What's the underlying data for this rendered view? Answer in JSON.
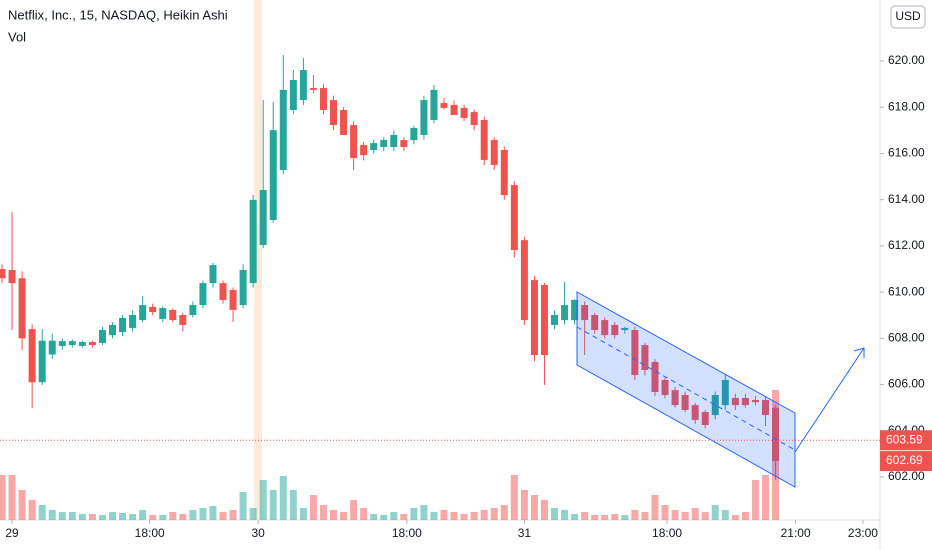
{
  "chart_data": {
    "type": "candlestick",
    "title": "Netflix, Inc., 15, NASDAQ, Heikin Ashi",
    "volume_label": "Vol",
    "currency": "USD",
    "up_color": "#26a69a",
    "down_color": "#ef5350",
    "x": [
      -1,
      0,
      1,
      2,
      3,
      4,
      5,
      6,
      7,
      8,
      9,
      10,
      11,
      12,
      13,
      14,
      15,
      16,
      17,
      18,
      19,
      20,
      21,
      22,
      23,
      24,
      25,
      26,
      27,
      28,
      29,
      30,
      31,
      32,
      33,
      34,
      35,
      36,
      37,
      38,
      39,
      40,
      41,
      42,
      43,
      44,
      45,
      46,
      47,
      48,
      49,
      50,
      51,
      52,
      53,
      54,
      55,
      56,
      57,
      58,
      59,
      60,
      61,
      62,
      63,
      64,
      65,
      66,
      67,
      68,
      69,
      70,
      71,
      72,
      73,
      74,
      75,
      76
    ],
    "open": [
      611.0,
      610.96,
      610.6,
      608.4,
      606.1,
      607.3,
      607.67,
      607.71,
      607.67,
      607.84,
      607.8,
      608.14,
      608.27,
      608.45,
      608.79,
      609.36,
      608.84,
      609.23,
      609.01,
      609.01,
      609.44,
      610.39,
      610.39,
      610.09,
      609.44,
      610.39,
      612.04,
      613.12,
      615.28,
      617.88,
      618.31,
      618.83,
      618.83,
      618.31,
      617.88,
      617.23,
      616.37,
      616.15,
      616.28,
      616.28,
      616.58,
      616.58,
      616.8,
      617.45,
      618.18,
      618.1,
      617.97,
      617.79,
      617.45,
      616.58,
      616.15,
      614.63,
      612.25,
      610.52,
      610.31,
      608.58,
      608.79,
      608.79,
      609.44,
      609.01,
      608.79,
      608.58,
      608.36,
      608.36,
      607.71,
      606.98,
      606.2,
      605.76,
      605.55,
      605.11,
      604.81,
      604.68,
      605.11,
      605.42,
      605.42,
      605.33,
      605.33,
      605.0
    ],
    "high": [
      611.2,
      613.47,
      610.9,
      608.6,
      608.4,
      608.2,
      608.0,
      607.95,
      607.9,
      607.9,
      608.5,
      608.7,
      609.0,
      609.2,
      609.83,
      609.5,
      609.4,
      609.3,
      609.1,
      609.6,
      610.5,
      611.26,
      610.5,
      610.2,
      611.2,
      614.2,
      618.31,
      618.23,
      620.26,
      619.61,
      620.13,
      619.4,
      619.0,
      618.5,
      618.0,
      617.4,
      616.5,
      616.6,
      616.7,
      617.0,
      616.7,
      617.2,
      618.5,
      618.96,
      618.4,
      618.3,
      618.1,
      617.9,
      617.6,
      616.7,
      616.3,
      614.8,
      612.4,
      610.7,
      610.4,
      609.2,
      610.44,
      609.7,
      609.6,
      609.1,
      608.9,
      608.7,
      608.5,
      608.5,
      607.8,
      607.1,
      606.3,
      605.9,
      605.7,
      605.2,
      604.9,
      605.7,
      606.41,
      605.6,
      605.6,
      605.5,
      605.5,
      605.1
    ],
    "low": [
      610.4,
      608.36,
      607.5,
      604.98,
      605.98,
      607.1,
      607.5,
      607.6,
      607.6,
      607.6,
      607.7,
      608.0,
      608.1,
      608.3,
      608.7,
      609.0,
      608.7,
      608.7,
      608.3,
      608.9,
      609.3,
      610.2,
      609.5,
      608.71,
      609.3,
      610.2,
      611.9,
      613.0,
      615.1,
      617.7,
      618.1,
      618.6,
      617.7,
      617.0,
      616.8,
      615.28,
      615.7,
      616.0,
      616.1,
      616.1,
      616.1,
      616.4,
      616.6,
      617.3,
      617.9,
      617.7,
      617.4,
      617.0,
      615.5,
      615.3,
      614.0,
      611.5,
      608.58,
      607.0,
      605.98,
      608.4,
      608.6,
      608.6,
      607.28,
      608.2,
      608.0,
      608.0,
      608.2,
      606.2,
      606.4,
      605.5,
      605.4,
      605.0,
      604.8,
      604.3,
      604.1,
      604.5,
      604.9,
      604.9,
      605.0,
      605.1,
      604.2,
      601.87
    ],
    "close": [
      610.6,
      610.39,
      608.0,
      606.1,
      607.9,
      607.9,
      607.88,
      607.88,
      607.84,
      607.71,
      608.36,
      608.58,
      608.88,
      609.01,
      609.44,
      609.14,
      609.31,
      608.79,
      608.58,
      609.44,
      610.39,
      611.17,
      609.66,
      609.23,
      610.96,
      613.99,
      614.42,
      617.01,
      618.75,
      619.18,
      619.61,
      618.75,
      617.88,
      617.23,
      616.8,
      615.8,
      615.93,
      616.45,
      616.58,
      616.8,
      616.28,
      617.1,
      618.31,
      618.75,
      617.97,
      617.66,
      617.53,
      617.23,
      615.72,
      615.5,
      614.2,
      611.82,
      608.79,
      607.28,
      607.28,
      609.01,
      609.44,
      609.66,
      608.79,
      608.36,
      608.14,
      608.14,
      608.45,
      606.41,
      606.63,
      605.68,
      605.55,
      605.11,
      604.9,
      604.47,
      604.25,
      605.55,
      606.2,
      605.11,
      605.11,
      605.24,
      604.68,
      602.69
    ],
    "volume": [
      45,
      45,
      30,
      20,
      15,
      10,
      8,
      8,
      6,
      6,
      5,
      8,
      7,
      6,
      10,
      5,
      5,
      8,
      6,
      10,
      12,
      14,
      8,
      10,
      28,
      12,
      40,
      30,
      44,
      30,
      12,
      25,
      15,
      10,
      8,
      20,
      12,
      6,
      5,
      8,
      6,
      12,
      15,
      8,
      10,
      8,
      6,
      8,
      10,
      12,
      15,
      45,
      30,
      25,
      20,
      12,
      10,
      6,
      8,
      5,
      5,
      6,
      5,
      10,
      8,
      25,
      15,
      10,
      8,
      12,
      8,
      15,
      10,
      5,
      8,
      40,
      45,
      130
    ],
    "vol_lim": [
      0,
      520
    ],
    "price_line": 603.59,
    "xlim": [
      -1.2,
      86.4
    ],
    "xticks": [
      {
        "value": 0,
        "label": "29"
      },
      {
        "value": 13.7,
        "label": "18:00"
      },
      {
        "value": 24.5,
        "label": "30"
      },
      {
        "value": 39.3,
        "label": "18:00"
      },
      {
        "value": 51,
        "label": "31"
      },
      {
        "value": 65.2,
        "label": "18:00"
      },
      {
        "value": 78,
        "label": "21:00"
      },
      {
        "value": 84.7,
        "label": "23:00"
      }
    ],
    "ylim": [
      600.14,
      622.64
    ],
    "yticks": [
      {
        "value": 602,
        "label": "602.00"
      },
      {
        "value": 604,
        "label": "604.00"
      },
      {
        "value": 606,
        "label": "606.00"
      },
      {
        "value": 608,
        "label": "608.00"
      },
      {
        "value": 610,
        "label": "610.00"
      },
      {
        "value": 612,
        "label": "612.00"
      },
      {
        "value": 614,
        "label": "614.00"
      },
      {
        "value": 616,
        "label": "616.00"
      },
      {
        "value": 618,
        "label": "618.00"
      },
      {
        "value": 620,
        "label": "620.00"
      }
    ]
  }
}
